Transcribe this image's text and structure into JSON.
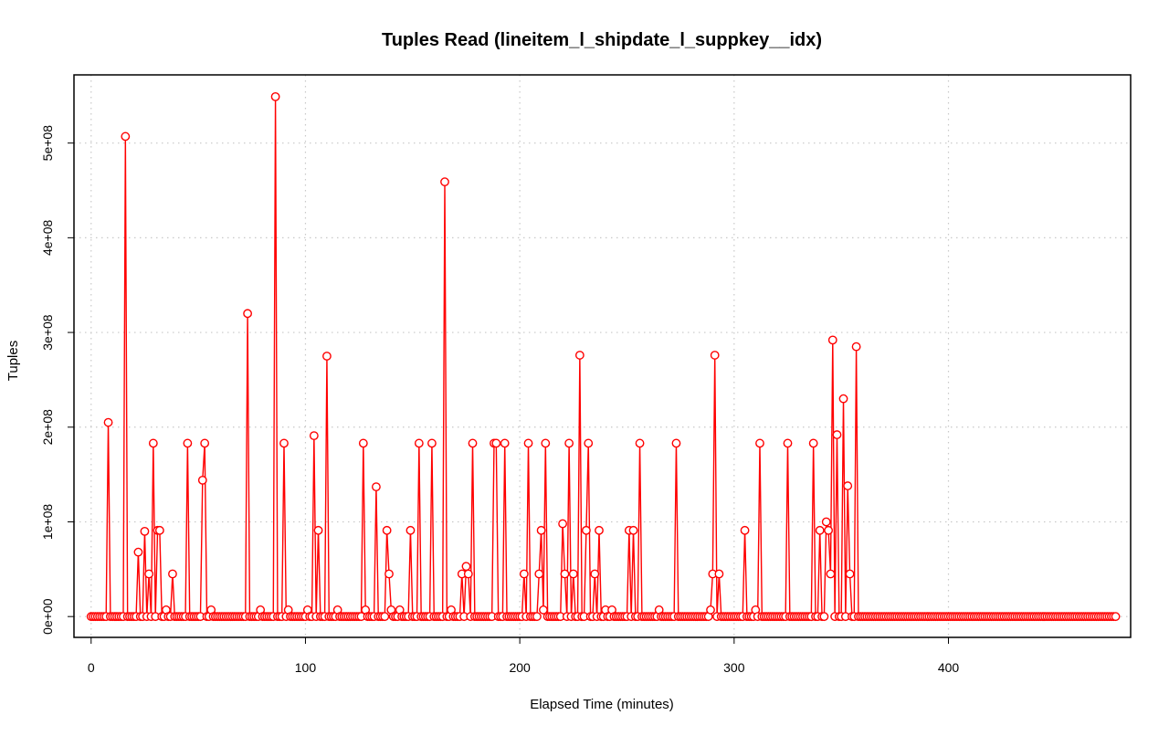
{
  "chart_data": {
    "type": "line",
    "title": "Tuples Read (lineitem_l_shipdate_l_suppkey__idx)",
    "xlabel": "Elapsed Time (minutes)",
    "ylabel": "Tuples",
    "xlim": [
      -8,
      485
    ],
    "ylim": [
      -22000000,
      572000000
    ],
    "x_ticks": [
      0,
      100,
      200,
      300,
      400
    ],
    "x_tick_labels": [
      "0",
      "100",
      "200",
      "300",
      "400"
    ],
    "y_ticks": [
      0,
      100000000,
      200000000,
      300000000,
      400000000,
      500000000
    ],
    "y_tick_labels": [
      "0e+00",
      "1e+08",
      "2e+08",
      "3e+08",
      "4e+08",
      "5e+08"
    ],
    "grid": true,
    "x_range": [
      0,
      478
    ],
    "baseline": 0,
    "series": [
      {
        "color": "#ff0000",
        "markers": "open-circle",
        "spikes": [
          [
            8,
            205000000
          ],
          [
            16,
            507000000
          ],
          [
            22,
            68000000
          ],
          [
            25,
            90000000
          ],
          [
            27,
            45000000
          ],
          [
            29,
            183000000
          ],
          [
            31,
            91000000
          ],
          [
            32,
            91000000
          ],
          [
            35,
            7000000
          ],
          [
            38,
            45000000
          ],
          [
            45,
            183000000
          ],
          [
            52,
            144000000
          ],
          [
            53,
            183000000
          ],
          [
            56,
            7000000
          ],
          [
            73,
            320000000
          ],
          [
            79,
            7000000
          ],
          [
            86,
            549000000
          ],
          [
            90,
            183000000
          ],
          [
            92,
            7000000
          ],
          [
            101,
            7000000
          ],
          [
            104,
            191000000
          ],
          [
            106,
            91000000
          ],
          [
            110,
            275000000
          ],
          [
            115,
            7000000
          ],
          [
            127,
            183000000
          ],
          [
            128,
            7000000
          ],
          [
            133,
            137000000
          ],
          [
            138,
            91000000
          ],
          [
            139,
            45000000
          ],
          [
            140,
            7000000
          ],
          [
            144,
            7000000
          ],
          [
            149,
            91000000
          ],
          [
            153,
            183000000
          ],
          [
            159,
            183000000
          ],
          [
            165,
            459000000
          ],
          [
            168,
            7000000
          ],
          [
            173,
            45000000
          ],
          [
            175,
            53000000
          ],
          [
            176,
            45000000
          ],
          [
            178,
            183000000
          ],
          [
            188,
            183000000
          ],
          [
            189,
            183000000
          ],
          [
            193,
            183000000
          ],
          [
            202,
            45000000
          ],
          [
            204,
            183000000
          ],
          [
            209,
            45000000
          ],
          [
            210,
            91000000
          ],
          [
            211,
            7000000
          ],
          [
            212,
            183000000
          ],
          [
            220,
            98000000
          ],
          [
            221,
            45000000
          ],
          [
            223,
            183000000
          ],
          [
            225,
            45000000
          ],
          [
            228,
            276000000
          ],
          [
            231,
            91000000
          ],
          [
            232,
            183000000
          ],
          [
            235,
            45000000
          ],
          [
            237,
            91000000
          ],
          [
            240,
            7000000
          ],
          [
            243,
            7000000
          ],
          [
            251,
            91000000
          ],
          [
            253,
            91000000
          ],
          [
            256,
            183000000
          ],
          [
            265,
            7000000
          ],
          [
            273,
            183000000
          ],
          [
            289,
            7000000
          ],
          [
            290,
            45000000
          ],
          [
            291,
            276000000
          ],
          [
            293,
            45000000
          ],
          [
            305,
            91000000
          ],
          [
            310,
            7000000
          ],
          [
            312,
            183000000
          ],
          [
            325,
            183000000
          ],
          [
            337,
            183000000
          ],
          [
            340,
            91000000
          ],
          [
            341,
            0
          ],
          [
            343,
            100000000
          ],
          [
            344,
            91000000
          ],
          [
            345,
            45000000
          ],
          [
            346,
            292000000
          ],
          [
            348,
            192000000
          ],
          [
            351,
            230000000
          ],
          [
            353,
            138000000
          ],
          [
            354,
            45000000
          ],
          [
            357,
            285000000
          ]
        ]
      }
    ]
  }
}
